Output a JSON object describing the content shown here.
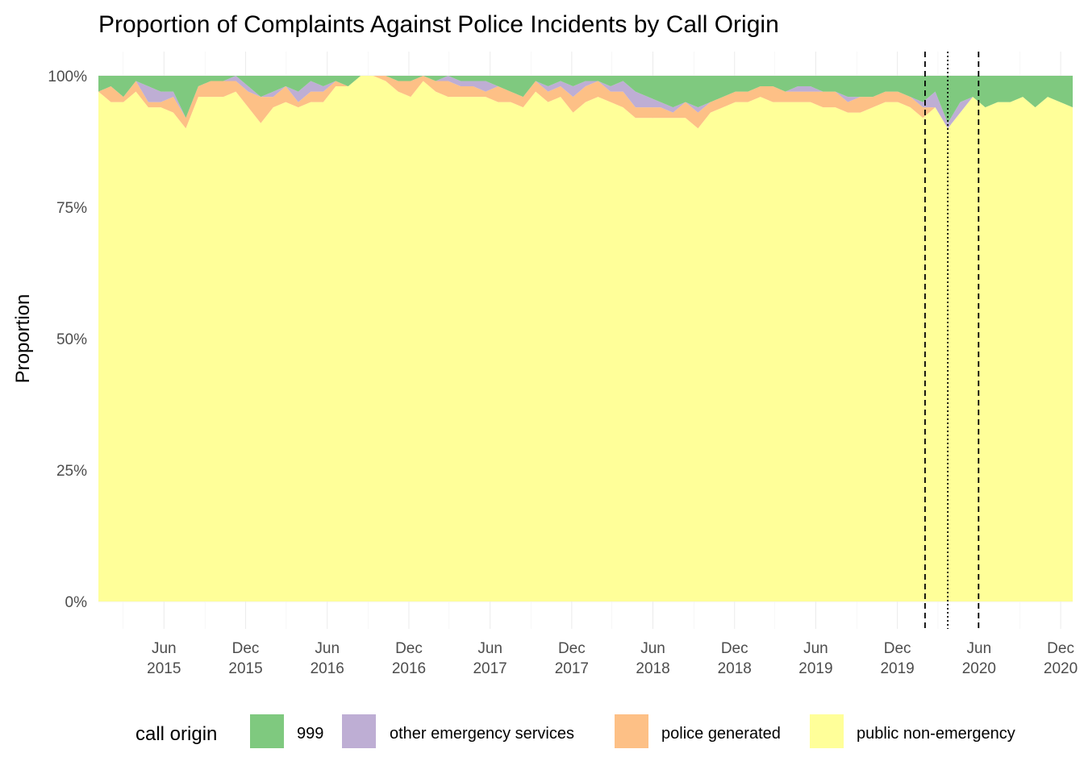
{
  "chart_data": {
    "type": "area",
    "title": "Proportion of Complaints Against Police Incidents by Call Origin",
    "xlabel": "",
    "ylabel": "Proportion",
    "ylim": [
      0,
      1
    ],
    "grid": true,
    "y_ticks": [
      {
        "value": 0,
        "label": "0%"
      },
      {
        "value": 0.25,
        "label": "25%"
      },
      {
        "value": 0.5,
        "label": "50%"
      },
      {
        "value": 0.75,
        "label": "75%"
      },
      {
        "value": 1,
        "label": "100%"
      }
    ],
    "x_range": [
      "2015-01-05",
      "2020-12-28"
    ],
    "x_ticks": [
      {
        "date": "2015-06-01",
        "line1": "Jun",
        "line2": "2015"
      },
      {
        "date": "2015-12-01",
        "line1": "Dec",
        "line2": "2015"
      },
      {
        "date": "2016-06-01",
        "line1": "Jun",
        "line2": "2016"
      },
      {
        "date": "2016-12-01",
        "line1": "Dec",
        "line2": "2016"
      },
      {
        "date": "2017-06-01",
        "line1": "Jun",
        "line2": "2017"
      },
      {
        "date": "2017-12-01",
        "line1": "Dec",
        "line2": "2017"
      },
      {
        "date": "2018-06-01",
        "line1": "Jun",
        "line2": "2018"
      },
      {
        "date": "2018-12-01",
        "line1": "Dec",
        "line2": "2018"
      },
      {
        "date": "2019-06-01",
        "line1": "Jun",
        "line2": "2019"
      },
      {
        "date": "2019-12-01",
        "line1": "Dec",
        "line2": "2019"
      },
      {
        "date": "2020-06-01",
        "line1": "Jun",
        "line2": "2020"
      },
      {
        "date": "2020-12-01",
        "line1": "Dec",
        "line2": "2020"
      }
    ],
    "reference_lines": [
      {
        "date": "2020-02-01",
        "style": "dashed"
      },
      {
        "date": "2020-03-23",
        "style": "dotted"
      },
      {
        "date": "2020-05-31",
        "style": "dashed"
      }
    ],
    "legend": {
      "title": "call origin",
      "position": "bottom",
      "entries": [
        {
          "name": "999",
          "color": "#7fc97f"
        },
        {
          "name": "other emergency services",
          "color": "#beaed4"
        },
        {
          "name": "police generated",
          "color": "#fdc086"
        },
        {
          "name": "public non-emergency",
          "color": "#ffff99"
        }
      ]
    },
    "x": [
      "2015-01-05",
      "2015-02-02",
      "2015-03-02",
      "2015-03-30",
      "2015-04-27",
      "2015-05-25",
      "2015-06-22",
      "2015-07-20",
      "2015-08-17",
      "2015-09-14",
      "2015-10-12",
      "2015-11-09",
      "2015-12-07",
      "2016-01-04",
      "2016-02-01",
      "2016-02-29",
      "2016-03-28",
      "2016-04-25",
      "2016-05-23",
      "2016-06-20",
      "2016-07-18",
      "2016-08-15",
      "2016-09-12",
      "2016-10-10",
      "2016-11-07",
      "2016-12-05",
      "2017-01-02",
      "2017-01-30",
      "2017-02-27",
      "2017-03-27",
      "2017-04-24",
      "2017-05-22",
      "2017-06-19",
      "2017-07-17",
      "2017-08-14",
      "2017-09-11",
      "2017-10-09",
      "2017-11-06",
      "2017-12-04",
      "2018-01-01",
      "2018-01-29",
      "2018-02-26",
      "2018-03-26",
      "2018-04-23",
      "2018-05-21",
      "2018-06-18",
      "2018-07-16",
      "2018-08-13",
      "2018-09-10",
      "2018-10-08",
      "2018-11-05",
      "2018-12-03",
      "2018-12-31",
      "2019-01-28",
      "2019-02-25",
      "2019-03-25",
      "2019-04-22",
      "2019-05-20",
      "2019-06-17",
      "2019-07-15",
      "2019-08-12",
      "2019-09-09",
      "2019-10-07",
      "2019-11-04",
      "2019-12-02",
      "2019-12-30",
      "2020-01-27",
      "2020-02-24",
      "2020-03-23",
      "2020-04-20",
      "2020-05-18",
      "2020-06-15",
      "2020-07-13",
      "2020-08-10",
      "2020-09-07",
      "2020-10-05",
      "2020-11-02",
      "2020-11-30",
      "2020-12-28"
    ],
    "series": [
      {
        "name": "999",
        "values": [
          0.03,
          0.02,
          0.04,
          0.01,
          0.02,
          0.03,
          0.03,
          0.08,
          0.02,
          0.01,
          0.01,
          0.0,
          0.02,
          0.04,
          0.03,
          0.02,
          0.03,
          0.01,
          0.02,
          0.01,
          0.02,
          0.0,
          0.0,
          0.0,
          0.01,
          0.01,
          0.0,
          0.01,
          0.0,
          0.01,
          0.01,
          0.01,
          0.02,
          0.03,
          0.04,
          0.01,
          0.02,
          0.01,
          0.02,
          0.01,
          0.01,
          0.02,
          0.01,
          0.03,
          0.04,
          0.05,
          0.06,
          0.05,
          0.06,
          0.05,
          0.04,
          0.03,
          0.03,
          0.02,
          0.02,
          0.03,
          0.02,
          0.02,
          0.03,
          0.03,
          0.04,
          0.04,
          0.04,
          0.03,
          0.03,
          0.04,
          0.05,
          0.03,
          0.09,
          0.05,
          0.04,
          0.06,
          0.05,
          0.05,
          0.04,
          0.06,
          0.04,
          0.05,
          0.06
        ]
      },
      {
        "name": "other emergency services",
        "values": [
          0.0,
          0.0,
          0.0,
          0.0,
          0.03,
          0.02,
          0.01,
          0.0,
          0.0,
          0.0,
          0.0,
          0.01,
          0.01,
          0.0,
          0.01,
          0.0,
          0.02,
          0.02,
          0.01,
          0.0,
          0.0,
          0.0,
          0.0,
          0.0,
          0.0,
          0.0,
          0.0,
          0.0,
          0.01,
          0.01,
          0.01,
          0.02,
          0.0,
          0.0,
          0.0,
          0.0,
          0.01,
          0.01,
          0.02,
          0.01,
          0.0,
          0.01,
          0.02,
          0.03,
          0.02,
          0.01,
          0.01,
          0.0,
          0.01,
          0.0,
          0.0,
          0.0,
          0.0,
          0.0,
          0.0,
          0.0,
          0.01,
          0.01,
          0.0,
          0.0,
          0.01,
          0.0,
          0.0,
          0.0,
          0.0,
          0.0,
          0.01,
          0.03,
          0.01,
          0.02,
          0.0,
          0.0,
          0.0,
          0.0,
          0.0,
          0.0,
          0.0,
          0.0,
          0.0
        ]
      },
      {
        "name": "police generated",
        "values": [
          0.0,
          0.03,
          0.01,
          0.02,
          0.01,
          0.01,
          0.03,
          0.02,
          0.02,
          0.03,
          0.03,
          0.02,
          0.03,
          0.05,
          0.02,
          0.03,
          0.01,
          0.02,
          0.02,
          0.01,
          0.0,
          0.0,
          0.0,
          0.01,
          0.02,
          0.03,
          0.01,
          0.02,
          0.03,
          0.02,
          0.02,
          0.01,
          0.03,
          0.02,
          0.02,
          0.02,
          0.02,
          0.02,
          0.03,
          0.03,
          0.03,
          0.02,
          0.03,
          0.02,
          0.02,
          0.02,
          0.01,
          0.03,
          0.03,
          0.02,
          0.02,
          0.02,
          0.02,
          0.02,
          0.03,
          0.02,
          0.02,
          0.02,
          0.03,
          0.03,
          0.02,
          0.03,
          0.02,
          0.02,
          0.02,
          0.02,
          0.02,
          0.0,
          0.0,
          0.0,
          0.0,
          0.0,
          0.0,
          0.0,
          0.0,
          0.0,
          0.0,
          0.0,
          0.0
        ]
      },
      {
        "name": "public non-emergency",
        "values": [
          0.97,
          0.95,
          0.95,
          0.97,
          0.94,
          0.94,
          0.93,
          0.9,
          0.96,
          0.96,
          0.96,
          0.97,
          0.94,
          0.91,
          0.94,
          0.95,
          0.94,
          0.95,
          0.95,
          0.98,
          0.98,
          1.0,
          1.0,
          0.99,
          0.97,
          0.96,
          0.99,
          0.97,
          0.96,
          0.96,
          0.96,
          0.96,
          0.95,
          0.95,
          0.94,
          0.97,
          0.95,
          0.96,
          0.93,
          0.95,
          0.96,
          0.95,
          0.94,
          0.92,
          0.92,
          0.92,
          0.92,
          0.92,
          0.9,
          0.93,
          0.94,
          0.95,
          0.95,
          0.96,
          0.95,
          0.95,
          0.95,
          0.95,
          0.94,
          0.94,
          0.93,
          0.93,
          0.94,
          0.95,
          0.95,
          0.94,
          0.92,
          0.94,
          0.9,
          0.93,
          0.96,
          0.94,
          0.95,
          0.95,
          0.96,
          0.94,
          0.96,
          0.95,
          0.94
        ]
      }
    ]
  }
}
